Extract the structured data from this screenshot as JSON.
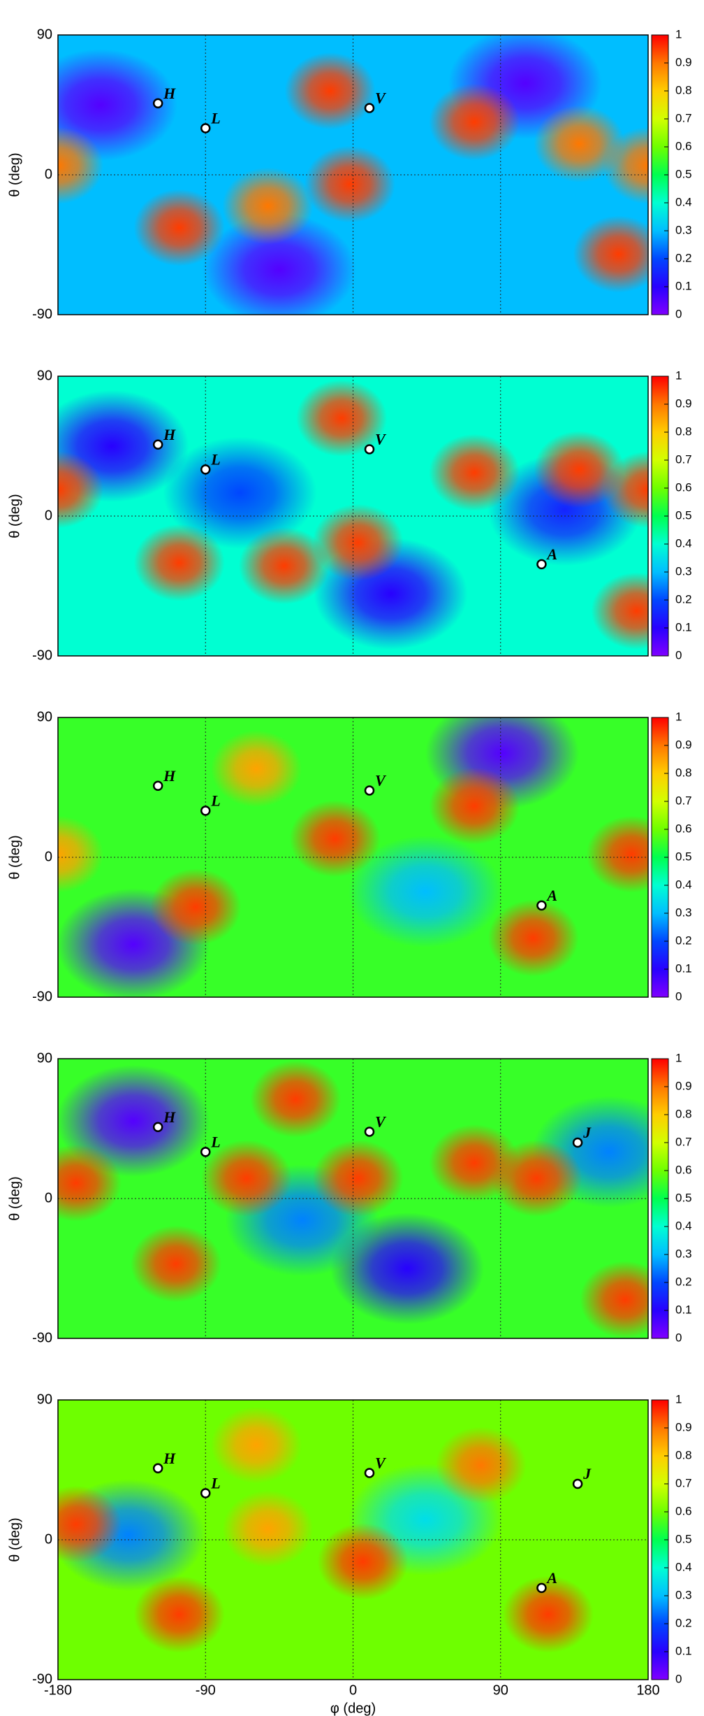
{
  "chart_data": [
    {
      "type": "heatmap",
      "ylabel": "θ (deg)",
      "xlim": [
        -180,
        180
      ],
      "ylim": [
        -90,
        90
      ],
      "xticks": [
        -180,
        -90,
        0,
        90,
        180
      ],
      "yticks": [
        -90,
        0,
        90
      ],
      "grid": true,
      "clim": [
        0,
        1
      ],
      "colorbar_ticks": [
        0,
        0.1,
        0.2,
        0.3,
        0.4,
        0.5,
        0.6,
        0.7,
        0.8,
        0.9,
        1
      ],
      "background_value": 0.3,
      "spots": [
        {
          "lon": -154,
          "lat": 45,
          "value": 0.05
        },
        {
          "lon": -45,
          "lat": -61,
          "value": 0.05
        },
        {
          "lon": 105,
          "lat": 59,
          "value": 0.05
        },
        {
          "lon": -106,
          "lat": -34,
          "value": 0.95
        },
        {
          "lon": -14,
          "lat": 54,
          "value": 0.95
        },
        {
          "lon": -52,
          "lat": -20,
          "value": 0.9
        },
        {
          "lon": -2,
          "lat": -6,
          "value": 0.95
        },
        {
          "lon": 74,
          "lat": 34,
          "value": 0.95
        },
        {
          "lon": 138,
          "lat": 20,
          "value": 0.9
        },
        {
          "lon": 162,
          "lat": -51,
          "value": 0.95
        },
        {
          "lon": 180,
          "lat": 6,
          "value": 0.9
        },
        {
          "lon": -180,
          "lat": 6,
          "value": 0.9
        }
      ],
      "detectors": [
        {
          "label": "H",
          "lon": -119,
          "lat": 46
        },
        {
          "label": "L",
          "lon": -90,
          "lat": 30
        },
        {
          "label": "V",
          "lon": 10,
          "lat": 43
        }
      ]
    },
    {
      "type": "heatmap",
      "ylabel": "θ (deg)",
      "xlim": [
        -180,
        180
      ],
      "ylim": [
        -90,
        90
      ],
      "xticks": [
        -180,
        -90,
        0,
        90,
        180
      ],
      "yticks": [
        -90,
        0,
        90
      ],
      "grid": true,
      "clim": [
        0,
        1
      ],
      "colorbar_ticks": [
        0,
        0.1,
        0.2,
        0.3,
        0.4,
        0.5,
        0.6,
        0.7,
        0.8,
        0.9,
        1
      ],
      "background_value": 0.4,
      "spots": [
        {
          "lon": -147,
          "lat": 45,
          "value": 0.1
        },
        {
          "lon": 23,
          "lat": -50,
          "value": 0.1
        },
        {
          "lon": 129,
          "lat": 4,
          "value": 0.15
        },
        {
          "lon": -69,
          "lat": 15,
          "value": 0.2
        },
        {
          "lon": -106,
          "lat": -30,
          "value": 0.95
        },
        {
          "lon": -42,
          "lat": -32,
          "value": 0.95
        },
        {
          "lon": 3,
          "lat": -17,
          "value": 0.95
        },
        {
          "lon": -7,
          "lat": 63,
          "value": 0.95
        },
        {
          "lon": 74,
          "lat": 28,
          "value": 0.95
        },
        {
          "lon": 138,
          "lat": 30,
          "value": 0.95
        },
        {
          "lon": 180,
          "lat": 17,
          "value": 0.95
        },
        {
          "lon": -180,
          "lat": 17,
          "value": 0.95
        },
        {
          "lon": 173,
          "lat": -61,
          "value": 0.95
        }
      ],
      "detectors": [
        {
          "label": "H",
          "lon": -119,
          "lat": 46
        },
        {
          "label": "L",
          "lon": -90,
          "lat": 30
        },
        {
          "label": "V",
          "lon": 10,
          "lat": 43
        },
        {
          "label": "A",
          "lon": 115,
          "lat": -31
        }
      ]
    },
    {
      "type": "heatmap",
      "ylabel": "θ (deg)",
      "xlim": [
        -180,
        180
      ],
      "ylim": [
        -90,
        90
      ],
      "xticks": [
        -180,
        -90,
        0,
        90,
        180
      ],
      "yticks": [
        -90,
        0,
        90
      ],
      "grid": true,
      "clim": [
        0,
        1
      ],
      "colorbar_ticks": [
        0,
        0.1,
        0.2,
        0.3,
        0.4,
        0.5,
        0.6,
        0.7,
        0.8,
        0.9,
        1
      ],
      "background_value": 0.55,
      "spots": [
        {
          "lon": -134,
          "lat": -56,
          "value": 0.05
        },
        {
          "lon": 91,
          "lat": 67,
          "value": 0.05
        },
        {
          "lon": 44,
          "lat": -22,
          "value": 0.3
        },
        {
          "lon": -59,
          "lat": 57,
          "value": 0.85
        },
        {
          "lon": -11,
          "lat": 12,
          "value": 0.95
        },
        {
          "lon": -96,
          "lat": -32,
          "value": 0.95
        },
        {
          "lon": 74,
          "lat": 33,
          "value": 0.95
        },
        {
          "lon": 110,
          "lat": -52,
          "value": 0.95
        },
        {
          "lon": 170,
          "lat": 2,
          "value": 0.95
        },
        {
          "lon": -180,
          "lat": 2,
          "value": 0.85
        }
      ],
      "detectors": [
        {
          "label": "H",
          "lon": -119,
          "lat": 46
        },
        {
          "label": "L",
          "lon": -90,
          "lat": 30
        },
        {
          "label": "V",
          "lon": 10,
          "lat": 43
        },
        {
          "label": "A",
          "lon": 115,
          "lat": -31
        }
      ]
    },
    {
      "type": "heatmap",
      "ylabel": "θ (deg)",
      "xlim": [
        -180,
        180
      ],
      "ylim": [
        -90,
        90
      ],
      "xticks": [
        -180,
        -90,
        0,
        90,
        180
      ],
      "yticks": [
        -90,
        0,
        90
      ],
      "grid": true,
      "clim": [
        0,
        1
      ],
      "colorbar_ticks": [
        0,
        0.1,
        0.2,
        0.3,
        0.4,
        0.5,
        0.6,
        0.7,
        0.8,
        0.9,
        1
      ],
      "background_value": 0.55,
      "spots": [
        {
          "lon": -134,
          "lat": 50,
          "value": 0.05
        },
        {
          "lon": 33,
          "lat": -45,
          "value": 0.1
        },
        {
          "lon": 156,
          "lat": 30,
          "value": 0.25
        },
        {
          "lon": -31,
          "lat": -14,
          "value": 0.25
        },
        {
          "lon": -35,
          "lat": 64,
          "value": 0.95
        },
        {
          "lon": 74,
          "lat": 23,
          "value": 0.95
        },
        {
          "lon": -65,
          "lat": 13,
          "value": 0.95
        },
        {
          "lon": 3,
          "lat": 13,
          "value": 0.95
        },
        {
          "lon": 112,
          "lat": 13,
          "value": 0.95
        },
        {
          "lon": -108,
          "lat": -42,
          "value": 0.95
        },
        {
          "lon": 166,
          "lat": -65,
          "value": 0.95
        },
        {
          "lon": -169,
          "lat": 10,
          "value": 0.95
        }
      ],
      "detectors": [
        {
          "label": "H",
          "lon": -119,
          "lat": 46
        },
        {
          "label": "L",
          "lon": -90,
          "lat": 30
        },
        {
          "label": "V",
          "lon": 10,
          "lat": 43
        },
        {
          "label": "J",
          "lon": 137,
          "lat": 36
        }
      ]
    },
    {
      "type": "heatmap",
      "ylabel": "θ (deg)",
      "xlabel": "φ (deg)",
      "xlim": [
        -180,
        180
      ],
      "ylim": [
        -90,
        90
      ],
      "xticks": [
        -180,
        -90,
        0,
        90,
        180
      ],
      "yticks": [
        -90,
        0,
        90
      ],
      "grid": true,
      "clim": [
        0,
        1
      ],
      "colorbar_ticks": [
        0,
        0.1,
        0.2,
        0.3,
        0.4,
        0.5,
        0.6,
        0.7,
        0.8,
        0.9,
        1
      ],
      "background_value": 0.6,
      "spots": [
        {
          "lon": -137,
          "lat": 3,
          "value": 0.25
        },
        {
          "lon": 44,
          "lat": 13,
          "value": 0.35
        },
        {
          "lon": -59,
          "lat": 61,
          "value": 0.85
        },
        {
          "lon": -52,
          "lat": 7,
          "value": 0.85
        },
        {
          "lon": 78,
          "lat": 48,
          "value": 0.9
        },
        {
          "lon": -106,
          "lat": -48,
          "value": 0.95
        },
        {
          "lon": 6,
          "lat": -14,
          "value": 0.95
        },
        {
          "lon": 119,
          "lat": -48,
          "value": 0.95
        },
        {
          "lon": -169,
          "lat": 10,
          "value": 0.95
        }
      ],
      "detectors": [
        {
          "label": "H",
          "lon": -119,
          "lat": 46
        },
        {
          "label": "L",
          "lon": -90,
          "lat": 30
        },
        {
          "label": "V",
          "lon": 10,
          "lat": 43
        },
        {
          "label": "J",
          "lon": 137,
          "lat": 36
        },
        {
          "label": "A",
          "lon": 115,
          "lat": -31
        }
      ]
    }
  ]
}
